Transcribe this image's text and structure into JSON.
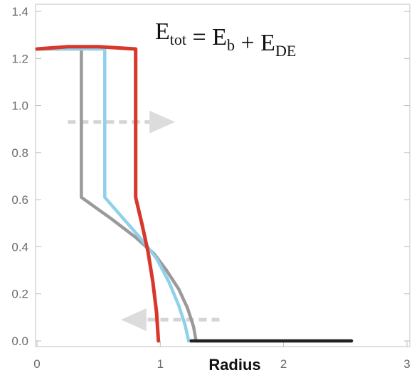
{
  "chart_data": {
    "type": "line",
    "title": "",
    "xlabel": "Radius",
    "ylabel": "",
    "xlim": [
      0,
      3
    ],
    "ylim": [
      0,
      1.4
    ],
    "x_ticks": [
      "0",
      "1",
      "2",
      "3"
    ],
    "y_ticks": [
      "0.0",
      "0.2",
      "0.4",
      "0.6",
      "0.8",
      "1.0",
      "1.2",
      "1.4"
    ],
    "annotation": {
      "parts": [
        {
          "text": "E",
          "sub": "tot"
        },
        {
          "text": " = "
        },
        {
          "text": "E",
          "sub": "b"
        },
        {
          "text": " + "
        },
        {
          "text": "E",
          "sub": "DE"
        }
      ]
    },
    "arrows": [
      {
        "direction": "right",
        "x_from": 0.25,
        "x_to": 1.12,
        "y": 0.93
      },
      {
        "direction": "left",
        "x_from": 1.48,
        "x_to": 0.68,
        "y": 0.09
      }
    ],
    "series": [
      {
        "color": "#9a9a9a",
        "points": [
          [
            0,
            1.24
          ],
          [
            0.36,
            1.24
          ],
          [
            0.36,
            0.61
          ],
          [
            0.6,
            0.52
          ],
          [
            0.8,
            0.44
          ],
          [
            0.95,
            0.37
          ],
          [
            1.05,
            0.3
          ],
          [
            1.15,
            0.22
          ],
          [
            1.22,
            0.14
          ],
          [
            1.27,
            0.06
          ],
          [
            1.29,
            0.0
          ],
          [
            2.55,
            0.0
          ]
        ]
      },
      {
        "color": "#8fd0ea",
        "points": [
          [
            0,
            1.24
          ],
          [
            0.55,
            1.24
          ],
          [
            0.55,
            0.61
          ],
          [
            0.7,
            0.52
          ],
          [
            0.85,
            0.43
          ],
          [
            0.97,
            0.35
          ],
          [
            1.07,
            0.25
          ],
          [
            1.15,
            0.15
          ],
          [
            1.2,
            0.07
          ],
          [
            1.23,
            0.0
          ],
          [
            2.55,
            0.0
          ]
        ]
      },
      {
        "color": "#d8372c",
        "points": [
          [
            0,
            1.24
          ],
          [
            0.25,
            1.25
          ],
          [
            0.5,
            1.25
          ],
          [
            0.8,
            1.24
          ],
          [
            0.8,
            0.61
          ],
          [
            0.85,
            0.5
          ],
          [
            0.9,
            0.38
          ],
          [
            0.94,
            0.25
          ],
          [
            0.97,
            0.12
          ],
          [
            0.985,
            0.0
          ]
        ]
      },
      {
        "color": "#222222",
        "points": [
          [
            1.25,
            0.0
          ],
          [
            2.55,
            0.0
          ]
        ]
      }
    ]
  }
}
